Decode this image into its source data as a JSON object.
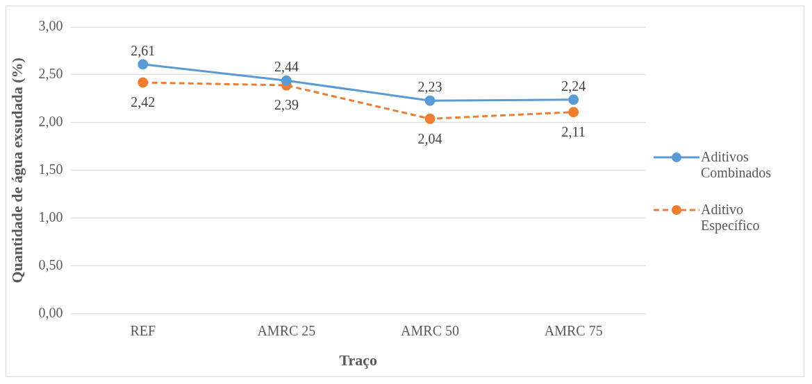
{
  "chart_data": {
    "type": "line",
    "xlabel": "Traço",
    "ylabel": "Quantidade de água exsudada (%)",
    "categories": [
      "REF",
      "AMRC 25",
      "AMRC 50",
      "AMRC 75"
    ],
    "series": [
      {
        "name": "Aditivos Combinados",
        "color": "#5b9bd5",
        "values": [
          2.61,
          2.44,
          2.23,
          2.24
        ],
        "value_labels": [
          "2,61",
          "2,44",
          "2,23",
          "2,24"
        ],
        "line_style": "solid"
      },
      {
        "name": "Aditivo Específico",
        "color": "#ed7d31",
        "values": [
          2.42,
          2.39,
          2.04,
          2.11
        ],
        "value_labels": [
          "2,42",
          "2,39",
          "2,04",
          "2,11"
        ],
        "line_style": "dashed"
      }
    ],
    "ylim": [
      0,
      3
    ],
    "yticks": [
      {
        "value": 0,
        "label": "0,00"
      },
      {
        "value": 0.5,
        "label": "0,50"
      },
      {
        "value": 1,
        "label": "1,00"
      },
      {
        "value": 1.5,
        "label": "1,50"
      },
      {
        "value": 2,
        "label": "2,00"
      },
      {
        "value": 2.5,
        "label": "2,50"
      },
      {
        "value": 3,
        "label": "3,00"
      }
    ],
    "grid": "y",
    "legend": "right",
    "marker": "circle"
  }
}
